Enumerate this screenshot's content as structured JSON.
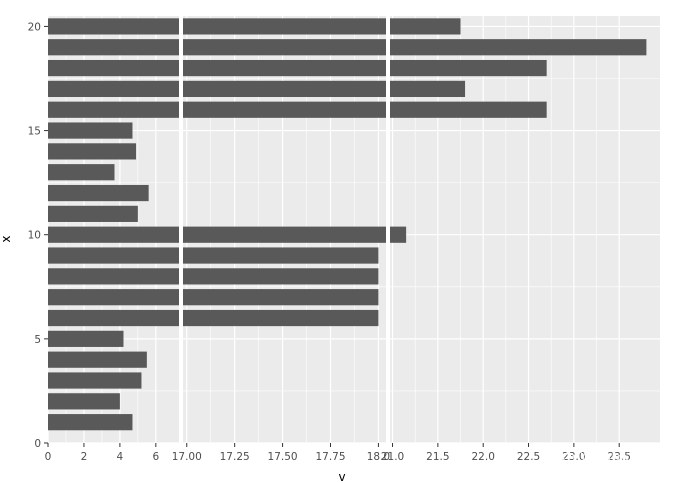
{
  "chart_data": {
    "type": "bar",
    "orientation": "horizontal",
    "y_axis": {
      "ticks": [
        0,
        5,
        10,
        15,
        20
      ],
      "range": [
        0,
        20.5
      ]
    },
    "x_axis_segments": [
      {
        "range": [
          0,
          7.4
        ],
        "ticks": [
          0,
          2,
          4,
          6
        ],
        "tick_labels": [
          "0",
          "2",
          "4",
          "6"
        ]
      },
      {
        "range": [
          16.97,
          18.05
        ],
        "ticks": [
          17.0,
          17.25,
          17.5,
          17.75,
          18.0
        ],
        "tick_labels": [
          "17.00",
          "17.25",
          "17.50",
          "17.75",
          "18.0"
        ]
      },
      {
        "range": [
          20.95,
          23.95
        ],
        "ticks": [
          21.0,
          21.5,
          22.0,
          22.5,
          23.0,
          23.5
        ],
        "tick_labels": [
          "21.0",
          "21.5",
          "22.0",
          "22.5",
          "23.0",
          "23.5"
        ]
      }
    ],
    "x": [
      1,
      2,
      3,
      4,
      5,
      6,
      7,
      8,
      9,
      10,
      11,
      12,
      13,
      14,
      15,
      16,
      17,
      18,
      19,
      20
    ],
    "values": [
      4.7,
      4.0,
      5.2,
      5.5,
      4.2,
      18.0,
      18.0,
      18.0,
      18.0,
      21.15,
      5.0,
      5.6,
      3.7,
      4.9,
      4.7,
      22.7,
      21.8,
      22.7,
      23.8,
      21.75
    ],
    "bar_color": "#595959",
    "panel_background": "#ebebeb",
    "grid": true,
    "xlabel": "v",
    "ylabel": "x"
  },
  "watermark": {
    "text": "YuLabSMU",
    "icon": "wechat-icon"
  }
}
